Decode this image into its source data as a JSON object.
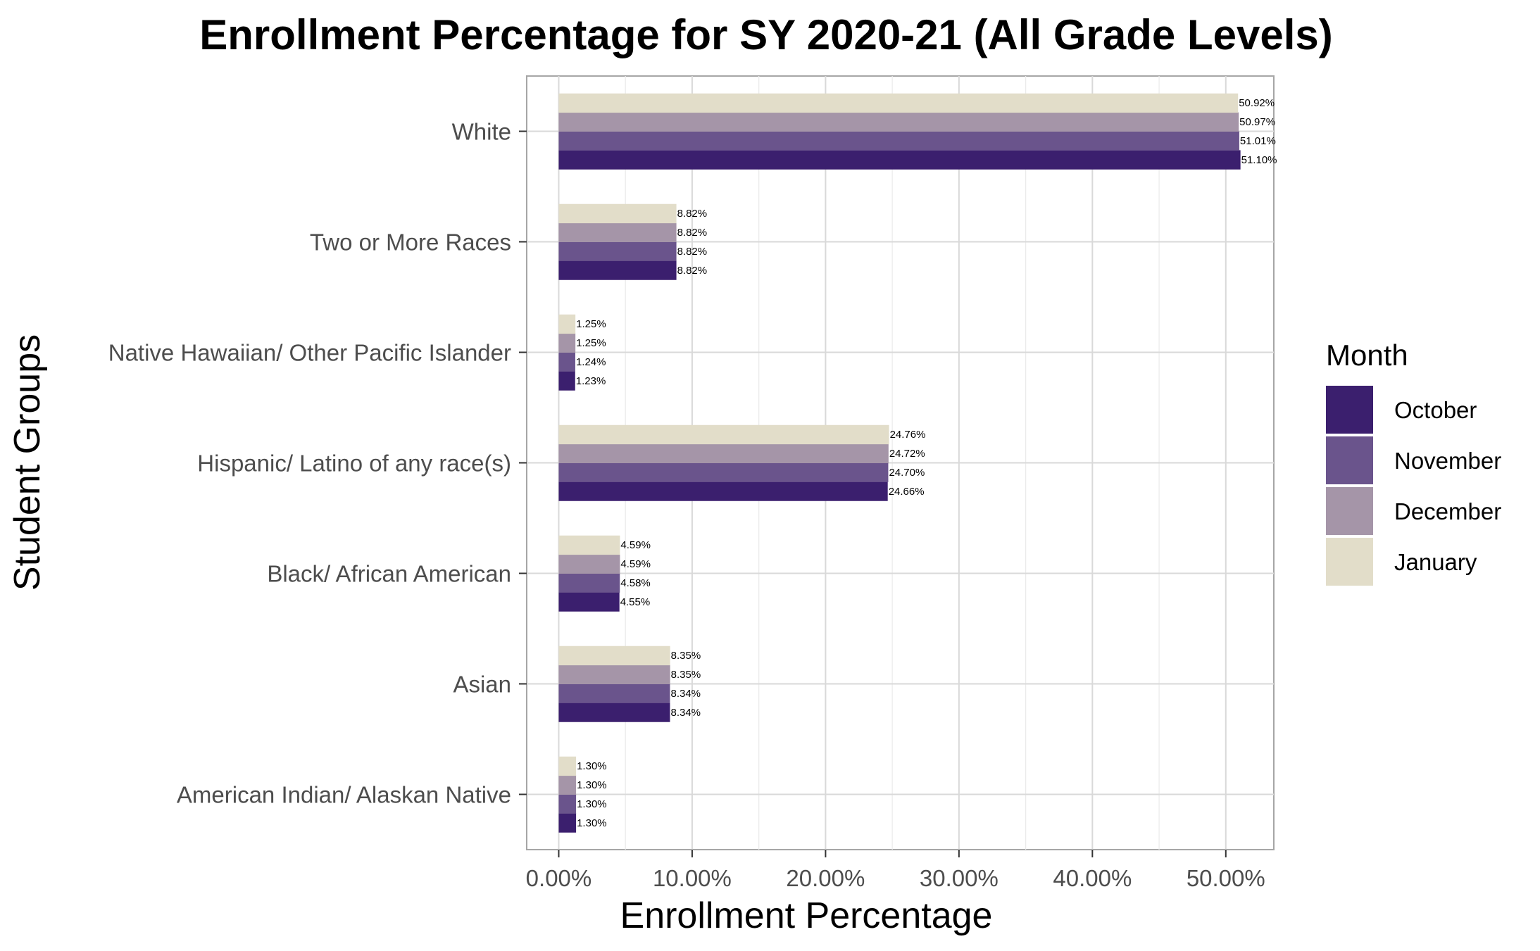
{
  "chart_data": {
    "type": "bar",
    "orientation": "horizontal",
    "title": "Enrollment Percentage for SY 2020-21 (All Grade Levels)",
    "xlabel": "Enrollment Percentage",
    "ylabel": "Student Groups",
    "xlim": [
      -2.4,
      53.6
    ],
    "x_ticks": [
      0,
      10,
      20,
      30,
      40,
      50
    ],
    "x_tick_labels": [
      "0.00%",
      "10.00%",
      "20.00%",
      "30.00%",
      "40.00%",
      "50.00%"
    ],
    "grid": true,
    "legend_position": "right",
    "legend_title": "Month",
    "categories": [
      "White",
      "Two or More Races",
      "Native Hawaiian/ Other Pacific Islander",
      "Hispanic/ Latino of any race(s)",
      "Black/ African American",
      "Asian",
      "American Indian/ Alaskan Native"
    ],
    "series": [
      {
        "name": "October",
        "color": "#3b1f6e",
        "values": [
          51.1,
          8.82,
          1.23,
          24.66,
          4.55,
          8.34,
          1.3
        ],
        "labels": [
          "51.10%",
          "8.82%",
          "1.23%",
          "24.66%",
          "4.55%",
          "8.34%",
          "1.30%"
        ]
      },
      {
        "name": "November",
        "color": "#6a548c",
        "values": [
          51.01,
          8.82,
          1.24,
          24.7,
          4.58,
          8.34,
          1.3
        ],
        "labels": [
          "51.01%",
          "8.82%",
          "1.24%",
          "24.70%",
          "4.58%",
          "8.34%",
          "1.30%"
        ]
      },
      {
        "name": "December",
        "color": "#a595a8",
        "values": [
          50.97,
          8.82,
          1.25,
          24.72,
          4.59,
          8.35,
          1.3
        ],
        "labels": [
          "50.97%",
          "8.82%",
          "1.25%",
          "24.72%",
          "4.59%",
          "8.35%",
          "1.30%"
        ]
      },
      {
        "name": "January",
        "color": "#e2ddc9",
        "values": [
          50.92,
          8.82,
          1.25,
          24.76,
          4.59,
          8.35,
          1.3
        ],
        "labels": [
          "50.92%",
          "8.82%",
          "1.25%",
          "24.76%",
          "4.59%",
          "8.35%",
          "1.30%"
        ]
      }
    ]
  }
}
